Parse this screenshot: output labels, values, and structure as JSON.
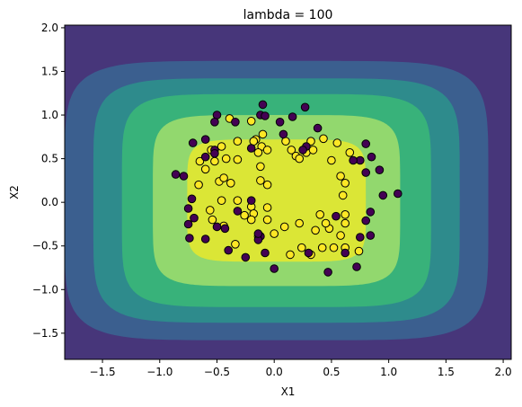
{
  "chart_data": {
    "type": "scatter",
    "title": "lambda = 100",
    "xlabel": "X1",
    "ylabel": "X2",
    "xlim": [
      -1.83,
      2.07
    ],
    "ylim": [
      -1.8,
      2.03
    ],
    "xticks": [
      "-1.5",
      "-1.0",
      "-0.5",
      "0.0",
      "0.5",
      "1.0",
      "1.5",
      "2.0"
    ],
    "xtick_values": [
      -1.5,
      -1.0,
      -0.5,
      0.0,
      0.5,
      1.0,
      1.5,
      2.0
    ],
    "yticks": [
      "-1.5",
      "-1.0",
      "-0.5",
      "0.0",
      "0.5",
      "1.0",
      "1.5",
      "2.0"
    ],
    "ytick_values": [
      -1.5,
      -1.0,
      -0.5,
      0.0,
      0.5,
      1.0,
      1.5,
      2.0
    ],
    "grid": false,
    "contour_colors": [
      "#47367a",
      "#3b5f8f",
      "#2e8b8c",
      "#38b27a",
      "#92d86e",
      "#dbe636"
    ],
    "contour_levels": [
      {
        "cx": 0.02,
        "cy": 0.02,
        "rx": 1.85,
        "ry": 1.6,
        "n": 6
      },
      {
        "cx": 0.02,
        "cy": 0.02,
        "rx": 1.6,
        "ry": 1.4,
        "n": 6
      },
      {
        "cx": 0.02,
        "cy": 0.02,
        "rx": 1.35,
        "ry": 1.22,
        "n": 6
      },
      {
        "cx": 0.02,
        "cy": 0.02,
        "rx": 1.08,
        "ry": 0.98,
        "n": 6
      },
      {
        "cx": 0.02,
        "cy": 0.02,
        "rx": 0.78,
        "ry": 0.7,
        "n": 6
      }
    ],
    "series": [
      {
        "label_class": 1,
        "color": "#fde725",
        "points": [
          [
            -0.39,
            0.96
          ],
          [
            -0.2,
            0.93
          ],
          [
            -0.1,
            0.78
          ],
          [
            0.1,
            0.7
          ],
          [
            0.32,
            0.7
          ],
          [
            0.43,
            0.73
          ],
          [
            0.55,
            0.68
          ],
          [
            -0.16,
            0.72
          ],
          [
            -0.11,
            0.64
          ],
          [
            -0.18,
            0.7
          ],
          [
            -0.32,
            0.7
          ],
          [
            -0.06,
            0.6
          ],
          [
            0.15,
            0.6
          ],
          [
            0.19,
            0.53
          ],
          [
            0.28,
            0.57
          ],
          [
            0.34,
            0.6
          ],
          [
            -0.46,
            0.64
          ],
          [
            -0.55,
            0.6
          ],
          [
            -0.65,
            0.47
          ],
          [
            -0.52,
            0.47
          ],
          [
            -0.42,
            0.5
          ],
          [
            -0.32,
            0.49
          ],
          [
            -0.14,
            0.57
          ],
          [
            0.22,
            0.5
          ],
          [
            -0.12,
            0.41
          ],
          [
            0.66,
            0.57
          ],
          [
            0.5,
            0.48
          ],
          [
            0.58,
            0.3
          ],
          [
            0.62,
            0.22
          ],
          [
            0.6,
            0.08
          ],
          [
            0.62,
            -0.14
          ],
          [
            0.62,
            -0.24
          ],
          [
            0.58,
            -0.38
          ],
          [
            0.48,
            -0.3
          ],
          [
            0.4,
            -0.14
          ],
          [
            0.36,
            -0.32
          ],
          [
            0.42,
            -0.52
          ],
          [
            0.52,
            -0.52
          ],
          [
            0.62,
            -0.52
          ],
          [
            0.74,
            -0.56
          ],
          [
            0.22,
            -0.24
          ],
          [
            0.09,
            -0.28
          ],
          [
            0.0,
            -0.36
          ],
          [
            -0.14,
            -0.39
          ],
          [
            -0.34,
            -0.48
          ],
          [
            -0.44,
            -0.27
          ],
          [
            -0.54,
            -0.2
          ],
          [
            -0.56,
            -0.09
          ],
          [
            -0.46,
            0.02
          ],
          [
            -0.32,
            0.02
          ],
          [
            -0.2,
            -0.05
          ],
          [
            -0.18,
            -0.13
          ],
          [
            -0.26,
            -0.15
          ],
          [
            -0.06,
            -0.06
          ],
          [
            -0.12,
            0.25
          ],
          [
            -0.06,
            0.2
          ],
          [
            -0.38,
            0.22
          ],
          [
            -0.48,
            0.24
          ],
          [
            -0.6,
            0.38
          ],
          [
            -0.66,
            0.2
          ],
          [
            -0.2,
            -0.2
          ],
          [
            -0.44,
            0.28
          ],
          [
            0.45,
            -0.24
          ],
          [
            0.14,
            -0.6
          ],
          [
            0.32,
            -0.6
          ],
          [
            0.24,
            -0.52
          ],
          [
            -0.06,
            -0.2
          ]
        ]
      },
      {
        "label_class": 0,
        "color": "#440154",
        "points": [
          [
            -0.1,
            1.12
          ],
          [
            -0.12,
            1.0
          ],
          [
            -0.08,
            0.99
          ],
          [
            0.05,
            0.92
          ],
          [
            0.16,
            0.98
          ],
          [
            0.27,
            1.09
          ],
          [
            0.38,
            0.85
          ],
          [
            -0.5,
            1.0
          ],
          [
            -0.52,
            0.92
          ],
          [
            -0.34,
            0.92
          ],
          [
            -0.71,
            0.68
          ],
          [
            -0.6,
            0.72
          ],
          [
            -0.52,
            0.6
          ],
          [
            -0.6,
            0.52
          ],
          [
            -0.79,
            0.3
          ],
          [
            -0.86,
            0.32
          ],
          [
            0.75,
            0.48
          ],
          [
            0.69,
            0.48
          ],
          [
            0.8,
            0.34
          ],
          [
            0.85,
            0.52
          ],
          [
            0.8,
            0.67
          ],
          [
            0.92,
            0.37
          ],
          [
            0.95,
            0.08
          ],
          [
            1.08,
            0.1
          ],
          [
            0.84,
            -0.11
          ],
          [
            0.8,
            -0.21
          ],
          [
            0.75,
            -0.4
          ],
          [
            0.84,
            -0.38
          ],
          [
            0.62,
            -0.58
          ],
          [
            0.72,
            -0.74
          ],
          [
            0.47,
            -0.8
          ],
          [
            0.3,
            -0.58
          ],
          [
            0.0,
            -0.76
          ],
          [
            -0.08,
            -0.58
          ],
          [
            -0.25,
            -0.63
          ],
          [
            -0.4,
            -0.55
          ],
          [
            -0.43,
            -0.3
          ],
          [
            -0.5,
            -0.28
          ],
          [
            -0.6,
            -0.42
          ],
          [
            -0.74,
            -0.41
          ],
          [
            -0.7,
            -0.18
          ],
          [
            -0.75,
            -0.25
          ],
          [
            -0.72,
            0.04
          ],
          [
            -0.75,
            -0.07
          ],
          [
            -0.52,
            0.56
          ],
          [
            -0.12,
            -0.39
          ],
          [
            -0.14,
            -0.43
          ],
          [
            0.54,
            -0.16
          ],
          [
            0.28,
            0.64
          ],
          [
            0.08,
            0.78
          ],
          [
            -0.2,
            0.62
          ],
          [
            -0.14,
            -0.36
          ],
          [
            -0.2,
            0.02
          ],
          [
            -0.32,
            -0.1
          ],
          [
            0.25,
            0.6
          ]
        ]
      }
    ]
  }
}
